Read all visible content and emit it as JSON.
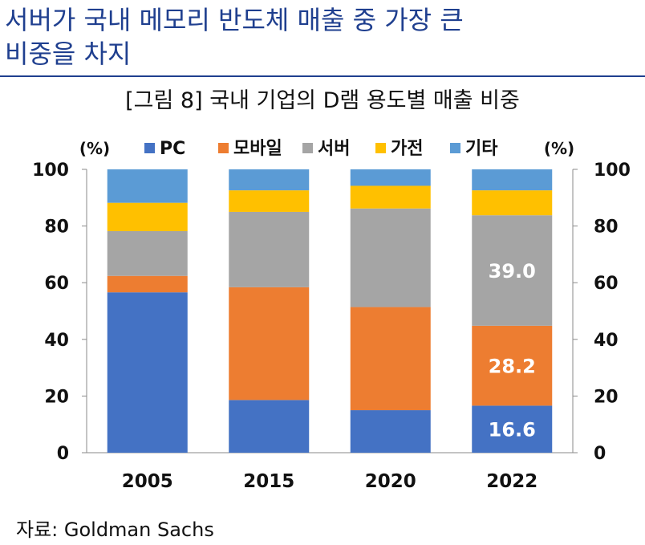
{
  "headline": {
    "line1": "서버가 국내 메모리 반도체 매출 중 가장 큰",
    "line2": "비중을 차지"
  },
  "source": "자료: Goldman Sachs",
  "chart_data": {
    "type": "bar",
    "stacked": true,
    "title": "[그림 8] 국내 기업의 D램 용도별 매출 비중",
    "left_unit": "(%)",
    "right_unit": "(%)",
    "categories": [
      "2005",
      "2015",
      "2020",
      "2022"
    ],
    "ylim": [
      0,
      100
    ],
    "yticks": [
      "0",
      "20",
      "40",
      "60",
      "80",
      "100"
    ],
    "grid": false,
    "legend_position": "top",
    "series": [
      {
        "name": "PC",
        "color": "#4472c4",
        "values": [
          56.6,
          18.6,
          15.0,
          16.6
        ]
      },
      {
        "name": "모바일",
        "color": "#ed7d31",
        "values": [
          5.8,
          39.8,
          36.4,
          28.2
        ]
      },
      {
        "name": "서버",
        "color": "#a5a5a5",
        "values": [
          15.8,
          26.6,
          34.8,
          39.0
        ]
      },
      {
        "name": "가전",
        "color": "#ffc000",
        "values": [
          10.0,
          7.6,
          8.0,
          8.8
        ]
      },
      {
        "name": "기타",
        "color": "#5b9bd5",
        "values": [
          11.8,
          7.4,
          5.8,
          7.4
        ]
      }
    ],
    "data_labels": [
      {
        "category": "2022",
        "series": "PC",
        "text": "16.6"
      },
      {
        "category": "2022",
        "series": "모바일",
        "text": "28.2"
      },
      {
        "category": "2022",
        "series": "서버",
        "text": "39.0"
      }
    ]
  }
}
